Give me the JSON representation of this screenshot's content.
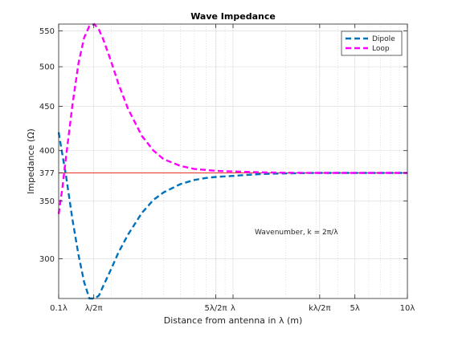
{
  "chart_data": {
    "type": "line",
    "title": "Wave Impedance",
    "xlabel": "Distance from antenna in λ (m)",
    "ylabel": "Impedance (Ω)",
    "xscale": "log",
    "yscale": "log",
    "xlim": [
      0.1,
      10
    ],
    "ylim": [
      270,
      560
    ],
    "grid": true,
    "legend_position": "top-right",
    "annotation": "Wavenumber, k = 2π/λ",
    "x_ticks": [
      {
        "value": 0.1,
        "label": "0.1λ"
      },
      {
        "value": 0.159,
        "label": "λ/2π"
      },
      {
        "value": 0.796,
        "label": "5λ/2π"
      },
      {
        "value": 1,
        "label": "λ"
      },
      {
        "value": 3.14,
        "label": "kλ/2π"
      },
      {
        "value": 5,
        "label": "5λ"
      },
      {
        "value": 10,
        "label": "10λ"
      }
    ],
    "y_ticks": [
      {
        "value": 300,
        "label": "300"
      },
      {
        "value": 350,
        "label": "350"
      },
      {
        "value": 377,
        "label": "377"
      },
      {
        "value": 400,
        "label": "400"
      },
      {
        "value": 450,
        "label": "450"
      },
      {
        "value": 500,
        "label": "500"
      },
      {
        "value": 550,
        "label": "550"
      }
    ],
    "reference_line": {
      "y": 377,
      "color": "#e8302a"
    },
    "series": [
      {
        "name": "Dipole",
        "color": "#0072bd",
        "style": "dashed",
        "x": [
          0.1,
          0.105,
          0.11,
          0.115,
          0.12,
          0.13,
          0.14,
          0.15,
          0.16,
          0.17,
          0.18,
          0.2,
          0.22,
          0.25,
          0.3,
          0.35,
          0.4,
          0.5,
          0.6,
          0.7,
          0.8,
          1,
          1.2,
          1.5,
          2,
          3,
          5,
          10
        ],
        "values": [
          420,
          396,
          375,
          353,
          333,
          303,
          282,
          270,
          268,
          272,
          279,
          292,
          305,
          320,
          339,
          351,
          358,
          366,
          370,
          372,
          373,
          374,
          375,
          376,
          376.5,
          377,
          377,
          377
        ]
      },
      {
        "name": "Loop",
        "color": "#ff00ff",
        "style": "dashed",
        "x": [
          0.1,
          0.105,
          0.11,
          0.12,
          0.13,
          0.14,
          0.15,
          0.16,
          0.17,
          0.18,
          0.2,
          0.22,
          0.25,
          0.3,
          0.35,
          0.4,
          0.5,
          0.6,
          0.7,
          0.8,
          1,
          1.2,
          1.5,
          2,
          3,
          5,
          10
        ],
        "values": [
          338,
          362,
          392,
          452,
          505,
          540,
          557,
          560,
          552,
          538,
          507,
          478,
          447,
          416,
          400,
          391,
          384,
          381,
          380,
          379,
          378.5,
          378,
          377.5,
          377.2,
          377,
          377,
          377
        ]
      }
    ]
  }
}
